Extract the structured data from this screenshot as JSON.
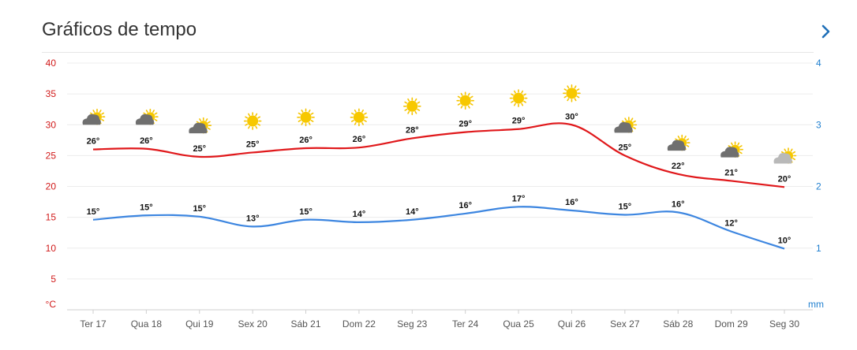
{
  "header": {
    "title": "Gráficos de tempo",
    "next_icon": "chevron-right-icon"
  },
  "chart_data": {
    "type": "line",
    "categories": [
      "Ter 17",
      "Qua 18",
      "Qui 19",
      "Sex 20",
      "Sáb 21",
      "Dom 22",
      "Seg 23",
      "Ter 24",
      "Qua 25",
      "Qui 26",
      "Sex 27",
      "Sáb 28",
      "Dom 29",
      "Seg 30"
    ],
    "series": [
      {
        "values": [
          26,
          26,
          25,
          25,
          26,
          26,
          28,
          29,
          29,
          30,
          25,
          22,
          21,
          20
        ],
        "curve": [
          26,
          26.1,
          24.8,
          25.5,
          26.2,
          26.3,
          27.8,
          28.8,
          29.3,
          30,
          25,
          22,
          20.9,
          19.9
        ],
        "color": "#e0181b"
      },
      {
        "values": [
          15,
          15,
          15,
          13,
          15,
          14,
          14,
          16,
          17,
          16,
          15,
          16,
          12,
          10
        ],
        "curve": [
          14.6,
          15.3,
          15.1,
          13.5,
          14.6,
          14.2,
          14.6,
          15.6,
          16.7,
          16.1,
          15.4,
          15.8,
          12.7,
          9.9
        ],
        "color": "#3d86e0"
      }
    ],
    "weather_icons": [
      "cloud-sun-icon",
      "cloud-sun-icon",
      "cloud-sun-icon",
      "sun-icon",
      "sun-icon",
      "sun-icon",
      "sun-icon",
      "sun-icon",
      "sun-icon",
      "sun-icon",
      "cloud-sun-icon",
      "cloud-sun-icon",
      "cloud-sun-icon",
      "light-cloud-sun-icon"
    ],
    "icon_levels": [
      30.9,
      30.9,
      29.5,
      30.6,
      31.2,
      31.2,
      33.0,
      33.9,
      34.3,
      35.1,
      29.6,
      26.7,
      25.6,
      24.6
    ],
    "y_left": {
      "ticks": [
        40,
        35,
        30,
        25,
        20,
        15,
        10,
        5
      ],
      "unit": "°C",
      "ylim": [
        0,
        40
      ],
      "color": "#d11a1a"
    },
    "y_right": {
      "ticks": [
        4,
        3,
        2,
        1
      ],
      "unit": "mm",
      "ylim": [
        0,
        4
      ],
      "color": "#1f7fcf"
    },
    "grid": true,
    "degree_suffix": "°"
  }
}
